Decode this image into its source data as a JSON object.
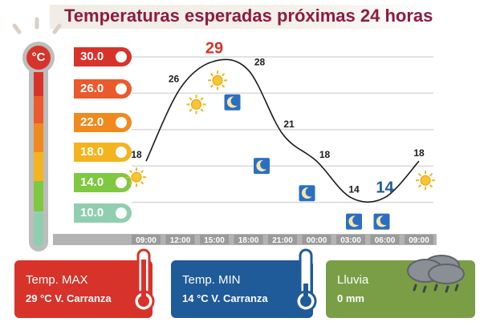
{
  "header": {
    "title": "Temperaturas esperadas próximas 24 horas"
  },
  "scale": {
    "unit_label": "°C",
    "levels": [
      {
        "label": "30.0",
        "color": "#d7332a"
      },
      {
        "label": "26.0",
        "color": "#ea5a2c"
      },
      {
        "label": "22.0",
        "color": "#f08a1e"
      },
      {
        "label": "18.0",
        "color": "#f4b41e"
      },
      {
        "label": "14.0",
        "color": "#7ec940"
      },
      {
        "label": "10.0",
        "color": "#8fcfb0"
      }
    ]
  },
  "chart_data": {
    "type": "line",
    "x": [
      "09:00",
      "12:00",
      "15:00",
      "18:00",
      "21:00",
      "00:00",
      "03:00",
      "06:00",
      "09:00"
    ],
    "values": [
      18,
      26,
      29,
      28,
      21,
      18,
      14,
      14,
      18
    ],
    "point_labels": [
      "18",
      "26",
      "29",
      "28",
      "21",
      "18",
      "14",
      "14",
      "18"
    ],
    "conditions": [
      "sun",
      "sun",
      "sun",
      "moon",
      "moon",
      "moon",
      "moon",
      "moon",
      "sun"
    ],
    "highlight": {
      "max_index": 2,
      "min_index": 7,
      "max_color": "#d7332a",
      "min_color": "#1f5a99"
    },
    "ylim": [
      8,
      32
    ],
    "grid": true
  },
  "cards": {
    "max": {
      "label": "Temp. MAX",
      "value": "29  °C  V. Carranza",
      "color": "#d7332a"
    },
    "min": {
      "label": "Temp. MIN",
      "value": "14  °C  V. Carranza",
      "color": "#1f5a99"
    },
    "rain": {
      "label": "Lluvia",
      "value": "0 mm",
      "color": "#7a9e45"
    }
  }
}
